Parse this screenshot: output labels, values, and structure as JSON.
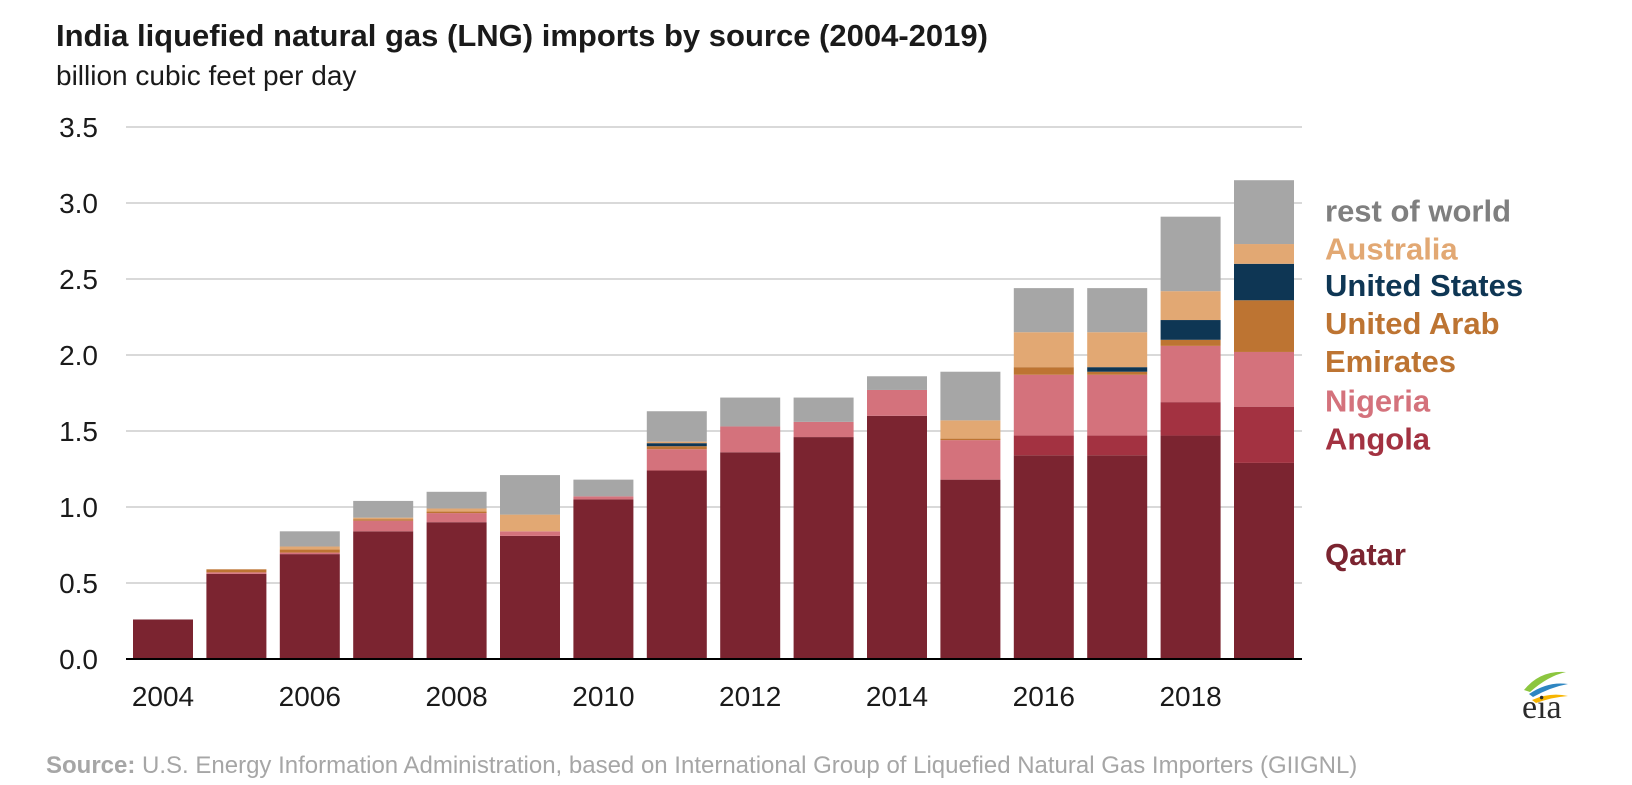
{
  "header": {
    "title": "India liquefied natural gas (LNG) imports by source (2004-2019)",
    "subtitle": "billion cubic feet per day"
  },
  "source": {
    "label": "Source:",
    "text": " U.S. Energy Information Administration, based on International Group of Liquefied Natural Gas Importers (GIIGNL)"
  },
  "logo": {
    "text": "eia",
    "icon": "eia-leaf-icon"
  },
  "chart_data": {
    "type": "bar",
    "stacked": true,
    "title": "India liquefied natural gas (LNG) imports by source (2004-2019)",
    "ylabel": "billion cubic feet per day",
    "xlabel": "",
    "ylim": [
      0,
      3.5
    ],
    "y_ticks": [
      "0.0",
      "0.5",
      "1.0",
      "1.5",
      "2.0",
      "2.5",
      "3.0",
      "3.5"
    ],
    "y_tick_values": [
      0,
      0.5,
      1.0,
      1.5,
      2.0,
      2.5,
      3.0,
      3.5
    ],
    "x_tick_labels": [
      {
        "label": "2004",
        "index": 0
      },
      {
        "label": "2006",
        "index": 2
      },
      {
        "label": "2008",
        "index": 4
      },
      {
        "label": "2010",
        "index": 6
      },
      {
        "label": "2012",
        "index": 8
      },
      {
        "label": "2014",
        "index": 10
      },
      {
        "label": "2016",
        "index": 12
      },
      {
        "label": "2018",
        "index": 14
      }
    ],
    "grid": true,
    "legend_position": "right",
    "categories": [
      "2004",
      "2005",
      "2006",
      "2007",
      "2008",
      "2009",
      "2010",
      "2011",
      "2012",
      "2013",
      "2014",
      "2015",
      "2016",
      "2017",
      "2018",
      "2019"
    ],
    "series": [
      {
        "name": "Qatar",
        "color": "#7b2430",
        "values": [
          0.26,
          0.56,
          0.69,
          0.84,
          0.9,
          0.81,
          1.05,
          1.24,
          1.36,
          1.46,
          1.6,
          1.18,
          1.34,
          1.34,
          1.47,
          1.29
        ]
      },
      {
        "name": "Angola",
        "color": "#a33241",
        "values": [
          0,
          0,
          0,
          0,
          0,
          0,
          0,
          0,
          0,
          0,
          0,
          0,
          0.13,
          0.13,
          0.22,
          0.37
        ]
      },
      {
        "name": "Nigeria",
        "color": "#d4727c",
        "values": [
          0,
          0.01,
          0.01,
          0.07,
          0.06,
          0.03,
          0.02,
          0.14,
          0.17,
          0.1,
          0.17,
          0.26,
          0.4,
          0.4,
          0.37,
          0.36
        ]
      },
      {
        "name": "United Arab Emirates",
        "color": "#bd7432",
        "values": [
          0,
          0.02,
          0.02,
          0.01,
          0.01,
          0,
          0,
          0.02,
          0,
          0,
          0,
          0.01,
          0.05,
          0.02,
          0.04,
          0.34
        ]
      },
      {
        "name": "United States",
        "color": "#0e3654",
        "values": [
          0,
          0,
          0,
          0,
          0,
          0,
          0,
          0.02,
          0,
          0,
          0,
          0,
          0,
          0.03,
          0.13,
          0.24
        ]
      },
      {
        "name": "Australia",
        "color": "#e2a873",
        "values": [
          0,
          0,
          0.02,
          0.01,
          0.02,
          0.11,
          0,
          0.01,
          0,
          0,
          0,
          0.12,
          0.23,
          0.23,
          0.19,
          0.13
        ]
      },
      {
        "name": "rest of world",
        "color": "#a6a6a6",
        "values": [
          0,
          0,
          0.1,
          0.11,
          0.11,
          0.26,
          0.11,
          0.2,
          0.19,
          0.16,
          0.09,
          0.32,
          0.29,
          0.29,
          0.49,
          0.42
        ]
      }
    ],
    "legend": [
      {
        "text": "rest of world",
        "color": "#7f7f7f",
        "value": 2.95
      },
      {
        "text": "Australia",
        "color": "#e2a873",
        "value": 2.7
      },
      {
        "text": "United States",
        "color": "#0e3654",
        "value": 2.46
      },
      {
        "text": "United Arab",
        "color": "#bd7432",
        "value": 2.21
      },
      {
        "text": "Emirates",
        "color": "#bd7432",
        "value": 1.96
      },
      {
        "text": "Nigeria",
        "color": "#d4727c",
        "value": 1.7
      },
      {
        "text": "Angola",
        "color": "#a33241",
        "value": 1.45
      },
      {
        "text": "Qatar",
        "color": "#7b2430",
        "value": 0.69
      }
    ]
  }
}
